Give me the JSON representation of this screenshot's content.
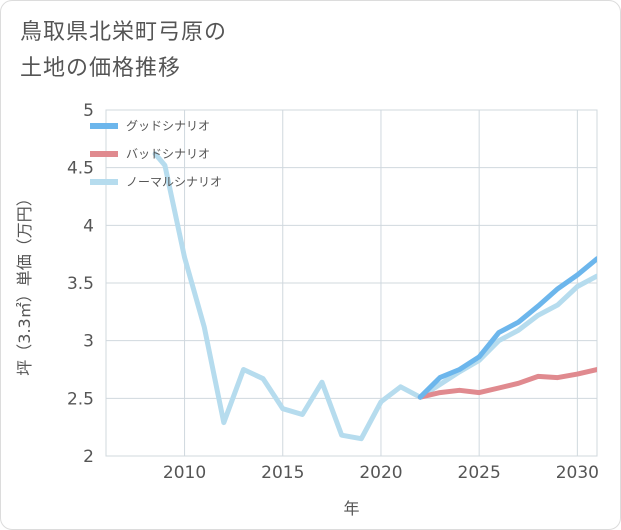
{
  "title": {
    "line1": "鳥取県北栄町弓原の",
    "line2": "土地の価格推移"
  },
  "chart_data": {
    "type": "line",
    "title": "鳥取県北栄町弓原の土地の価格推移",
    "xlabel": "年",
    "ylabel": "坪（3.3㎡）単価（万円）",
    "xlim": [
      2006,
      2031
    ],
    "ylim": [
      2,
      5
    ],
    "xticks": [
      2010,
      2015,
      2020,
      2025,
      2030
    ],
    "yticks": [
      2,
      2.5,
      3,
      3.5,
      4,
      4.5,
      5
    ],
    "ytick_labels": [
      "2",
      "2.5",
      "3",
      "3.5",
      "4",
      "4.5",
      "5"
    ],
    "legend_position": "top-left",
    "grid": true,
    "series": [
      {
        "name": "グッドシナリオ",
        "color": "#6cb6ec",
        "x": [
          2022,
          2023,
          2024,
          2025,
          2026,
          2027,
          2028,
          2029,
          2030,
          2031
        ],
        "y": [
          2.51,
          2.68,
          2.75,
          2.86,
          3.07,
          3.16,
          3.3,
          3.45,
          3.57,
          3.71
        ]
      },
      {
        "name": "バッドシナリオ",
        "color": "#e08a8f",
        "x": [
          2022,
          2023,
          2024,
          2025,
          2026,
          2027,
          2028,
          2029,
          2030,
          2031
        ],
        "y": [
          2.51,
          2.55,
          2.57,
          2.55,
          2.59,
          2.63,
          2.69,
          2.68,
          2.71,
          2.75
        ]
      },
      {
        "name": "ノーマルシナリオ",
        "color": "#b6dcee",
        "x": [
          2008.5,
          2009,
          2010,
          2011,
          2012,
          2013,
          2014,
          2015,
          2016,
          2017,
          2018,
          2019,
          2020,
          2021,
          2022,
          2023,
          2024,
          2025,
          2026,
          2027,
          2028,
          2029,
          2030,
          2031
        ],
        "y": [
          4.62,
          4.52,
          3.72,
          3.12,
          2.29,
          2.75,
          2.67,
          2.41,
          2.36,
          2.64,
          2.18,
          2.15,
          2.47,
          2.6,
          2.51,
          2.62,
          2.73,
          2.83,
          3.0,
          3.09,
          3.22,
          3.31,
          3.47,
          3.56
        ]
      }
    ]
  }
}
